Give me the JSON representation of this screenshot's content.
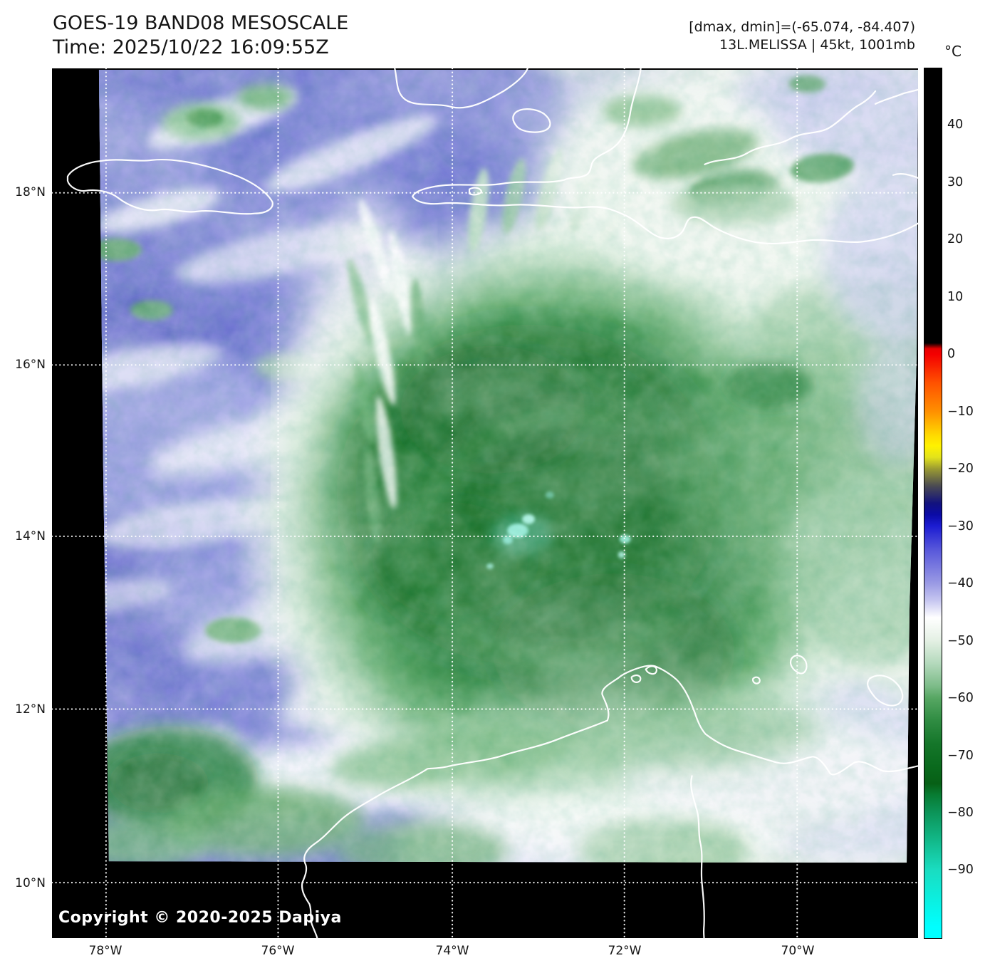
{
  "header": {
    "title_line1": "GOES-19 BAND08 MESOSCALE",
    "title_line2": "Time: 2025/10/22 16:09:55Z",
    "info_line1": "[dmax, dmin]=(-65.074, -84.407)",
    "info_line2": "13L.MELISSA | 45kt, 1001mb"
  },
  "map": {
    "lat_ticks": [
      "18°N",
      "16°N",
      "14°N",
      "12°N",
      "10°N"
    ],
    "lon_ticks": [
      "78°W",
      "76°W",
      "74°W",
      "72°W",
      "70°W"
    ],
    "copyright": "Copyright © 2020-2025 Dapiya"
  },
  "colorbar": {
    "unit": "°C",
    "ticks": [
      {
        "label": "40",
        "value": 40
      },
      {
        "label": "30",
        "value": 30
      },
      {
        "label": "20",
        "value": 20
      },
      {
        "label": "10",
        "value": 10
      },
      {
        "label": "0",
        "value": 0
      },
      {
        "label": "−10",
        "value": -10
      },
      {
        "label": "−20",
        "value": -20
      },
      {
        "label": "−30",
        "value": -30
      },
      {
        "label": "−40",
        "value": -40
      },
      {
        "label": "−50",
        "value": -50
      },
      {
        "label": "−60",
        "value": -60
      },
      {
        "label": "−70",
        "value": -70
      },
      {
        "label": "−80",
        "value": -80
      },
      {
        "label": "−90",
        "value": -90
      }
    ],
    "scale_top_value": 50,
    "scale_bottom_value": -102,
    "gradient_stops": [
      {
        "value": 50,
        "color": "#000000"
      },
      {
        "value": 2,
        "color": "#000000"
      },
      {
        "value": 1,
        "color": "#e80000"
      },
      {
        "value": 0,
        "color": "#f40000"
      },
      {
        "value": -5,
        "color": "#ff5200"
      },
      {
        "value": -10,
        "color": "#ff9000"
      },
      {
        "value": -14,
        "color": "#ffd800"
      },
      {
        "value": -16,
        "color": "#fff200"
      },
      {
        "value": -18,
        "color": "#e2e21c"
      },
      {
        "value": -20,
        "color": "#9a9a32"
      },
      {
        "value": -23,
        "color": "#4a4a52"
      },
      {
        "value": -26,
        "color": "#12127e"
      },
      {
        "value": -28,
        "color": "#0b0ba6"
      },
      {
        "value": -30,
        "color": "#1c1cd2"
      },
      {
        "value": -34,
        "color": "#5656da"
      },
      {
        "value": -40,
        "color": "#9a9ae4"
      },
      {
        "value": -43,
        "color": "#c6c6f0"
      },
      {
        "value": -46,
        "color": "#ffffff"
      },
      {
        "value": -50,
        "color": "#e4f0e4"
      },
      {
        "value": -54,
        "color": "#b4d9bc"
      },
      {
        "value": -58,
        "color": "#7cbb88"
      },
      {
        "value": -60,
        "color": "#57a763"
      },
      {
        "value": -64,
        "color": "#2f8c42"
      },
      {
        "value": -68,
        "color": "#15762a"
      },
      {
        "value": -72,
        "color": "#0a6a1d"
      },
      {
        "value": -75,
        "color": "#076016"
      },
      {
        "value": -77,
        "color": "#087c33"
      },
      {
        "value": -80,
        "color": "#0c9458"
      },
      {
        "value": -85,
        "color": "#12b98a"
      },
      {
        "value": -90,
        "color": "#1adcc0"
      },
      {
        "value": -95,
        "color": "#0ceede"
      },
      {
        "value": -100,
        "color": "#00ffff"
      }
    ]
  },
  "scene_colors": {
    "dry_air_blue": "#5b62c9",
    "storm_core_green": "#0b671f",
    "outer_cloud_pale": "#e7f1e7",
    "cold_overshoot_teal": "#8ff0dc",
    "coastline": "#ffffff",
    "background": "#000000"
  }
}
